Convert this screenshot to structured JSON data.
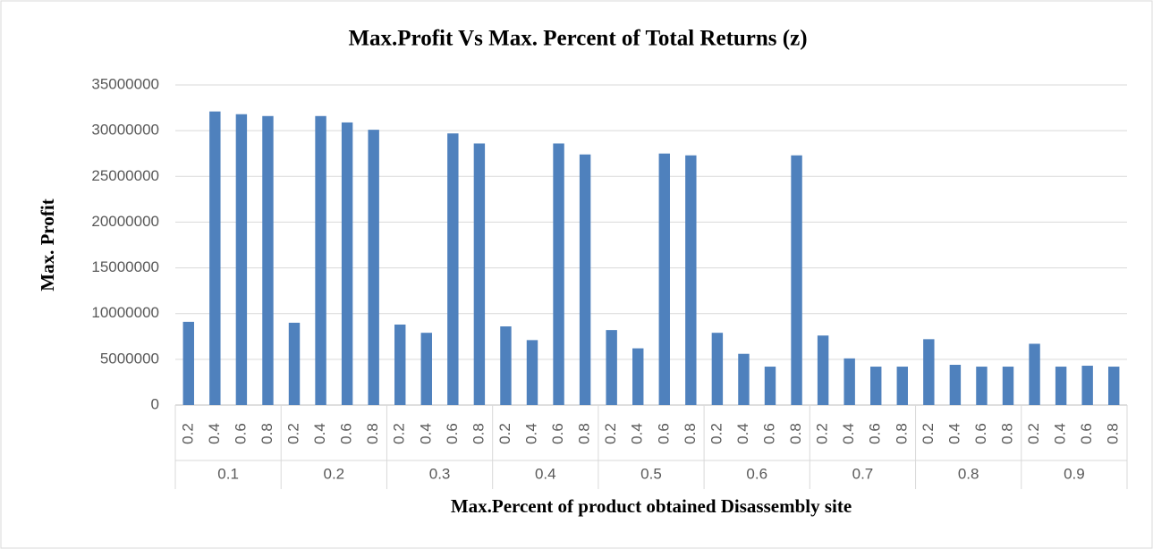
{
  "chart_data": {
    "type": "bar",
    "title": "Max.Profit Vs Max. Percent of Total Returns (z)",
    "x_label": "Max.Percent of  product obtained Disassembly site",
    "y_label": "Max. Profit",
    "color": "#4f81bd",
    "ylim": [
      0,
      35000000
    ],
    "yticks": [
      0,
      5000000,
      10000000,
      15000000,
      20000000,
      25000000,
      30000000,
      35000000
    ],
    "grid": true,
    "groups": [
      {
        "name": "0.1",
        "categories": [
          "0.2",
          "0.4",
          "0.6",
          "0.8"
        ],
        "values": [
          9100000,
          32100000,
          31800000,
          31600000
        ]
      },
      {
        "name": "0.2",
        "categories": [
          "0.2",
          "0.4",
          "0.6",
          "0.8"
        ],
        "values": [
          9000000,
          31600000,
          30900000,
          30100000
        ]
      },
      {
        "name": "0.3",
        "categories": [
          "0.2",
          "0.4",
          "0.6",
          "0.8"
        ],
        "values": [
          8800000,
          7900000,
          29700000,
          28600000
        ]
      },
      {
        "name": "0.4",
        "categories": [
          "0.2",
          "0.4",
          "0.6",
          "0.8"
        ],
        "values": [
          8600000,
          7100000,
          28600000,
          27400000
        ]
      },
      {
        "name": "0.5",
        "categories": [
          "0.2",
          "0.4",
          "0.6",
          "0.8"
        ],
        "values": [
          8200000,
          6200000,
          27500000,
          27300000
        ]
      },
      {
        "name": "0.6",
        "categories": [
          "0.2",
          "0.4",
          "0.6",
          "0.8"
        ],
        "values": [
          7900000,
          5600000,
          4200000,
          27300000
        ]
      },
      {
        "name": "0.7",
        "categories": [
          "0.2",
          "0.4",
          "0.6",
          "0.8"
        ],
        "values": [
          7600000,
          5100000,
          4200000,
          4200000
        ]
      },
      {
        "name": "0.8",
        "categories": [
          "0.2",
          "0.4",
          "0.6",
          "0.8"
        ],
        "values": [
          7200000,
          4400000,
          4200000,
          4200000
        ]
      },
      {
        "name": "0.9",
        "categories": [
          "0.2",
          "0.4",
          "0.6",
          "0.8"
        ],
        "values": [
          6700000,
          4200000,
          4300000,
          4200000
        ]
      }
    ]
  }
}
